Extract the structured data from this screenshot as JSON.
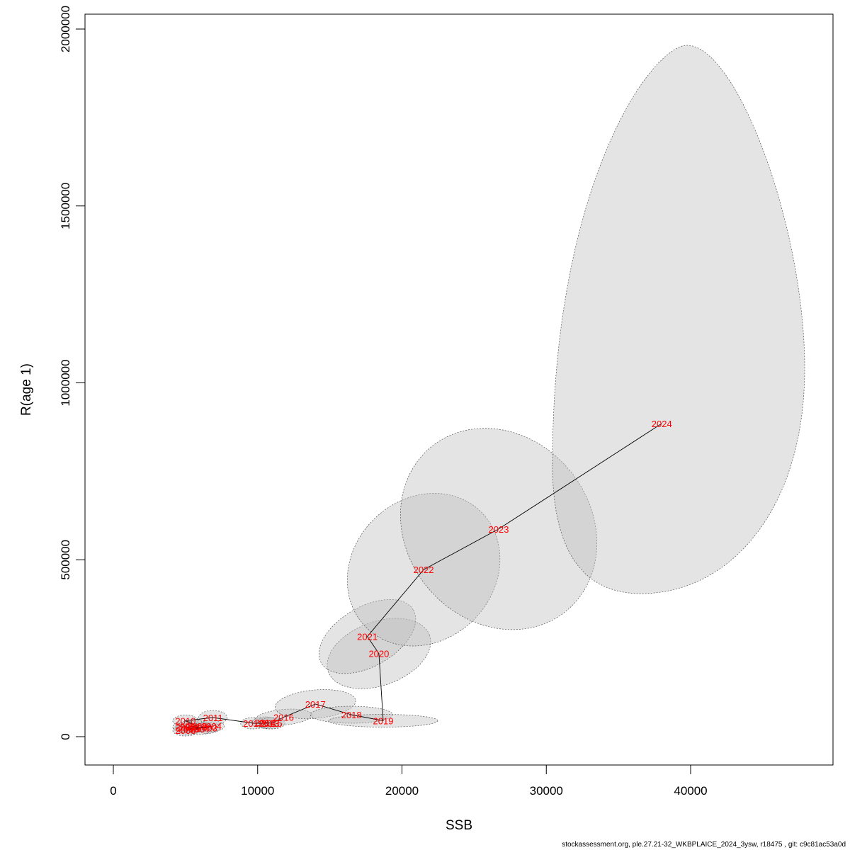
{
  "chart_data": {
    "type": "scatter",
    "xlabel": "SSB",
    "ylabel": "R(age 1)",
    "xlim": [
      -2000,
      50000
    ],
    "ylim": [
      -80000,
      2040000
    ],
    "x_ticks": [
      0,
      10000,
      20000,
      30000,
      40000
    ],
    "y_ticks": [
      0,
      500000,
      1000000,
      1500000,
      2000000
    ],
    "grid": false,
    "line_color": "#000000",
    "label_color": "#ff0000",
    "ellipse_fill": "#bebebe",
    "points": [
      {
        "year": "2002",
        "ssb": 5000,
        "r": 27000
      },
      {
        "year": "2003",
        "ssb": 6500,
        "r": 25000
      },
      {
        "year": "2004",
        "ssb": 6800,
        "r": 30000
      },
      {
        "year": "2005",
        "ssb": 5200,
        "r": 22000
      },
      {
        "year": "2006",
        "ssb": 5000,
        "r": 18000
      },
      {
        "year": "2007",
        "ssb": 6000,
        "r": 22000
      },
      {
        "year": "2008",
        "ssb": 5300,
        "r": 28000
      },
      {
        "year": "2009",
        "ssb": 5800,
        "r": 30000
      },
      {
        "year": "2010",
        "ssb": 5000,
        "r": 45000
      },
      {
        "year": "2011",
        "ssb": 6900,
        "r": 54000
      },
      {
        "year": "2012",
        "ssb": 9700,
        "r": 38000
      },
      {
        "year": "2013",
        "ssb": 10800,
        "r": 38000
      },
      {
        "year": "2014",
        "ssb": 10500,
        "r": 40000
      },
      {
        "year": "2015",
        "ssb": 11000,
        "r": 38000
      },
      {
        "year": "2016",
        "ssb": 11800,
        "r": 55000
      },
      {
        "year": "2017",
        "ssb": 14000,
        "r": 92000
      },
      {
        "year": "2018",
        "ssb": 16500,
        "r": 62000
      },
      {
        "year": "2019",
        "ssb": 18700,
        "r": 45000
      },
      {
        "year": "2020",
        "ssb": 18400,
        "r": 235000
      },
      {
        "year": "2021",
        "ssb": 17600,
        "r": 283000
      },
      {
        "year": "2022",
        "ssb": 21500,
        "r": 472000
      },
      {
        "year": "2023",
        "ssb": 26700,
        "r": 587000
      },
      {
        "year": "2024",
        "ssb": 38000,
        "r": 885000
      }
    ]
  },
  "footer": "stockassessment.org, ple.27.21-32_WKBPLAICE_2024_3ysw, r18475 , git: c9c81ac53a0d"
}
